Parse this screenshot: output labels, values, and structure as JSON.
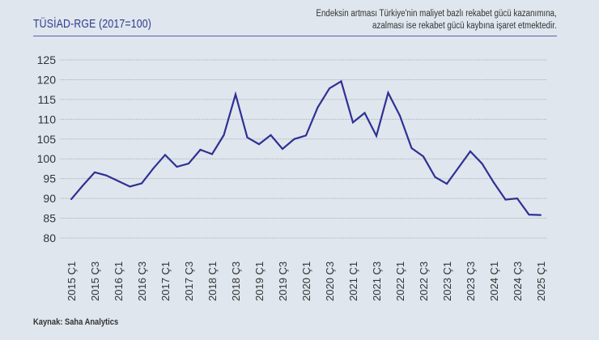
{
  "header": {
    "title": "TÜSİAD-RGE (2017=100)",
    "note_line1": "Endeksin artması Türkiye'nin maliyet bazlı rekabet gücü kazanımına,",
    "note_line2": "azalması ise rekabet gücü kaybına işaret etmektedir."
  },
  "footer": {
    "source": "Kaynak: Saha Analytics"
  },
  "colors": {
    "line": "#2e3192",
    "grid": "#a9b0b8",
    "background": "#dfe6ee"
  },
  "chart_data": {
    "type": "line",
    "title": "TÜSİAD-RGE (2017=100)",
    "xlabel": "",
    "ylabel": "",
    "ylim": [
      80,
      125
    ],
    "yticks": [
      80,
      85,
      90,
      95,
      100,
      105,
      110,
      115,
      120,
      125
    ],
    "xtick_labels": [
      "2015 Ç1",
      "2015 Ç3",
      "2016 Ç1",
      "2016 Ç3",
      "2017 Ç1",
      "2017 Ç3",
      "2018 Ç1",
      "2018 Ç3",
      "2019 Ç1",
      "2019 Ç3",
      "2020 Ç1",
      "2020 Ç3",
      "2021 Ç1",
      "2021 Ç3",
      "2022 Ç1",
      "2022 Ç3",
      "2023 Ç1",
      "2023 Ç3",
      "2024 Ç1",
      "2024 Ç3",
      "2025 Ç1"
    ],
    "grid": true,
    "legend": "none",
    "series": [
      {
        "name": "TÜSİAD-RGE",
        "values": [
          89.8,
          93.3,
          96.6,
          95.8,
          94.4,
          93.0,
          93.8,
          97.6,
          101.0,
          98.0,
          98.8,
          102.3,
          101.2,
          106.0,
          116.3,
          105.4,
          103.7,
          106.0,
          102.5,
          105.0,
          105.9,
          113.0,
          117.8,
          119.6,
          109.2,
          111.6,
          105.8,
          116.7,
          110.9,
          102.7,
          100.6,
          95.4,
          93.7,
          97.8,
          101.9,
          98.8,
          94.0,
          89.7,
          90.0,
          85.9,
          85.8
        ]
      }
    ]
  }
}
